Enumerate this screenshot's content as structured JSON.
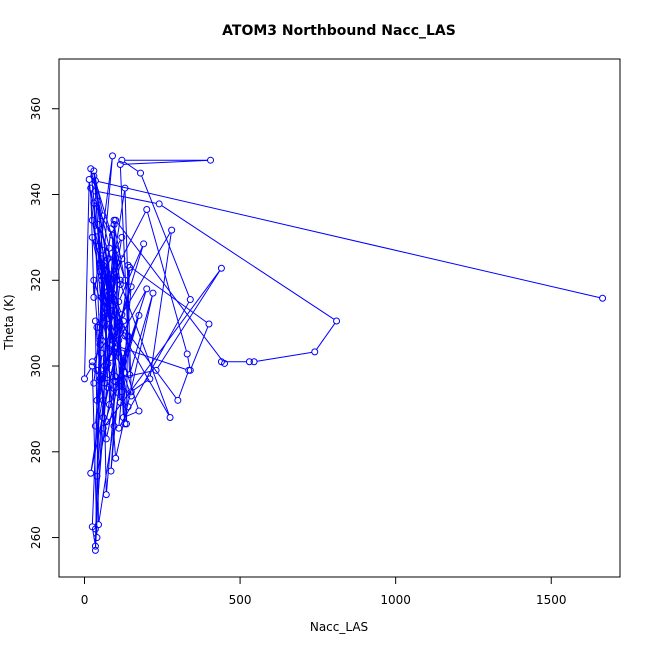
{
  "chart_data": {
    "type": "line",
    "title": "ATOM3 Northbound Nacc_LAS",
    "xlabel": "Nacc_LAS",
    "ylabel": "Theta (K)",
    "xlim": [
      -82,
      1721
    ],
    "ylim": [
      250.8,
      371.6
    ],
    "x_ticks": [
      0,
      500,
      1000,
      1500
    ],
    "y_ticks": [
      260,
      280,
      300,
      320,
      340,
      360
    ],
    "grid": false,
    "legend": "none",
    "series": [
      {
        "color": "#0000FF",
        "marker": "open-circle",
        "points": [
          [
            1665,
            315.8
          ],
          [
            35,
            343.2
          ],
          [
            95,
            312.0
          ],
          [
            90,
            330.5
          ],
          [
            30,
            338.0
          ],
          [
            50,
            305.0
          ],
          [
            80,
            320.5
          ],
          [
            140,
            290.5
          ],
          [
            65,
            296.0
          ],
          [
            75,
            325.0
          ],
          [
            120,
            300.0
          ],
          [
            40,
            309.0
          ],
          [
            90,
            316.0
          ],
          [
            130,
            286.5
          ],
          [
            95,
            333.0
          ],
          [
            130,
            320.0
          ],
          [
            30,
            344.3
          ],
          [
            110,
            306.0
          ],
          [
            200,
            318.0
          ],
          [
            80,
            291.0
          ],
          [
            80,
            311.0
          ],
          [
            80,
            320.0
          ],
          [
            60,
            298.0
          ],
          [
            190,
            328.5
          ],
          [
            110,
            315.0
          ],
          [
            50,
            322.0
          ],
          [
            35,
            340.8
          ],
          [
            240,
            337.8
          ],
          [
            810,
            310.5
          ],
          [
            740,
            303.3
          ],
          [
            545,
            301.0
          ],
          [
            530,
            301.0
          ],
          [
            440,
            301.0
          ],
          [
            450,
            300.6
          ],
          [
            100,
            334.0
          ],
          [
            80,
            317.0
          ],
          [
            100,
            295.0
          ],
          [
            70,
            270.0
          ],
          [
            55,
            321.0
          ],
          [
            120,
            330.0
          ],
          [
            90,
            317.0
          ],
          [
            55,
            325.0
          ],
          [
            35,
            257.0
          ],
          [
            60,
            292.0
          ],
          [
            30,
            320.0
          ],
          [
            100,
            304.0
          ],
          [
            25,
            330.0
          ],
          [
            120,
            312.0
          ],
          [
            280,
            331.7
          ],
          [
            210,
            297.0
          ],
          [
            150,
            294.0
          ],
          [
            130,
            341.5
          ],
          [
            80,
            318.0
          ],
          [
            140,
            307.0
          ],
          [
            70,
            283.0
          ],
          [
            35,
            310.5
          ],
          [
            45,
            263.0
          ],
          [
            115,
            296.0
          ],
          [
            175,
            311.8
          ],
          [
            60,
            285.5
          ],
          [
            440,
            322.8
          ],
          [
            230,
            299.0
          ],
          [
            30,
            296.0
          ],
          [
            85,
            332.0
          ],
          [
            115,
            319.0
          ],
          [
            100,
            327.0
          ],
          [
            40,
            274.3
          ],
          [
            70,
            287.0
          ],
          [
            145,
            323.0
          ],
          [
            130,
            298.5
          ],
          [
            90,
            314.0
          ],
          [
            25,
            334.0
          ],
          [
            90,
            306.0
          ],
          [
            95,
            286.0
          ],
          [
            85,
            275.5
          ],
          [
            120,
            303.0
          ],
          [
            135,
            286.5
          ],
          [
            140,
            323.5
          ],
          [
            400,
            309.8
          ],
          [
            340,
            299.0
          ],
          [
            330,
            302.8
          ],
          [
            200,
            336.5
          ],
          [
            55,
            316.0
          ],
          [
            275,
            288.0
          ],
          [
            45,
            333.0
          ],
          [
            100,
            278.5
          ],
          [
            220,
            317.0
          ],
          [
            145,
            298.0
          ],
          [
            115,
            347.0
          ],
          [
            405,
            348.0
          ],
          [
            120,
            348.0
          ],
          [
            180,
            345.0
          ],
          [
            340,
            315.5
          ],
          [
            110,
            285.5
          ],
          [
            150,
            318.5
          ],
          [
            40,
            292.0
          ],
          [
            90,
            308.0
          ],
          [
            25,
            301.0
          ],
          [
            50,
            297.0
          ],
          [
            55,
            303.0
          ],
          [
            35,
            286.0
          ],
          [
            65,
            300.0
          ],
          [
            150,
            293.0
          ],
          [
            60,
            312.0
          ],
          [
            125,
            310.5
          ],
          [
            75,
            295.0
          ],
          [
            60,
            288.0
          ],
          [
            80,
            327.5
          ],
          [
            20,
            346.0
          ],
          [
            40,
            331.5
          ],
          [
            20,
            341.5
          ],
          [
            30,
            316.0
          ],
          [
            90,
            349.0
          ],
          [
            55,
            320.0
          ],
          [
            50,
            306.0
          ],
          [
            120,
            325.0
          ],
          [
            100,
            322.0
          ],
          [
            35,
            262.0
          ],
          [
            40,
            260.0
          ],
          [
            25,
            300.0
          ],
          [
            0,
            297.0
          ],
          [
            15,
            343.5
          ],
          [
            60,
            310.0
          ],
          [
            85,
            302.0
          ],
          [
            115,
            320.0
          ],
          [
            50,
            324.0
          ],
          [
            60,
            335.0
          ],
          [
            30,
            345.5
          ],
          [
            75,
            300.5
          ],
          [
            20,
            275.0
          ],
          [
            105,
            304.5
          ],
          [
            40,
            299.0
          ],
          [
            95,
            296.5
          ],
          [
            95,
            334.0
          ],
          [
            115,
            291.5
          ],
          [
            40,
            338.5
          ],
          [
            110,
            309.5
          ],
          [
            125,
            288.0
          ],
          [
            175,
            289.5
          ],
          [
            65,
            315.0
          ],
          [
            300,
            292.0
          ],
          [
            335,
            299.0
          ],
          [
            90,
            305.0
          ],
          [
            45,
            328.0
          ],
          [
            85,
            313.0
          ],
          [
            130,
            307.0
          ],
          [
            60,
            323.5
          ],
          [
            35,
            258.0
          ],
          [
            25,
            262.5
          ],
          [
            60,
            327.0
          ],
          [
            100,
            297.5
          ],
          [
            120,
            294.0
          ]
        ]
      }
    ]
  }
}
